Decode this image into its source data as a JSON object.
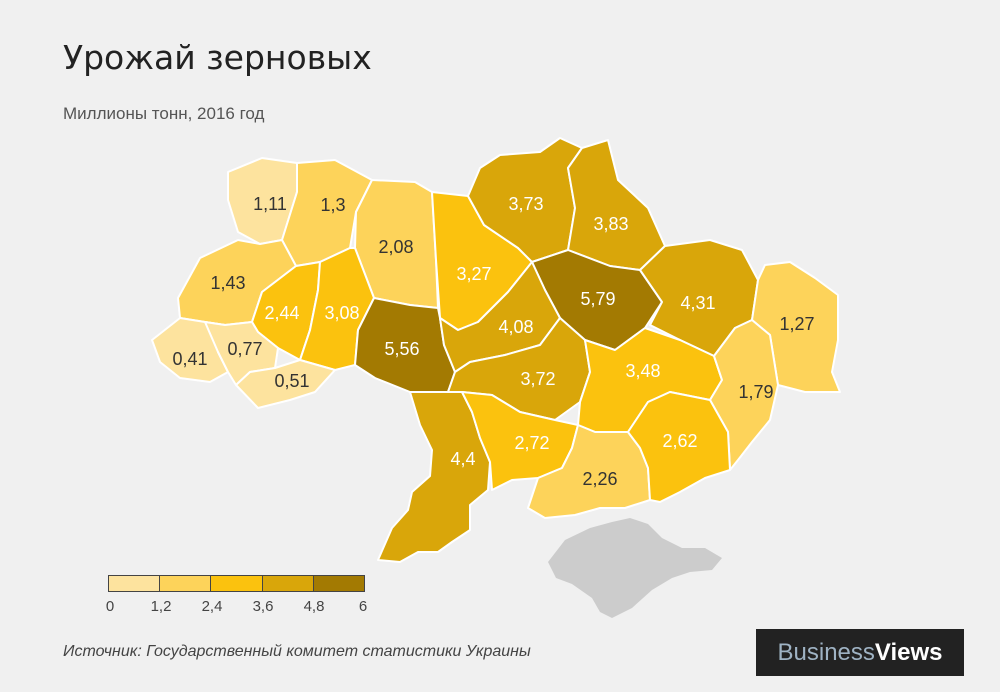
{
  "title": "Урожай зерновых",
  "subtitle": "Миллионы тонн, 2016 год",
  "source": "Источник: Государственный комитет статистики Украины",
  "logo": {
    "part1": "Business",
    "part2": "Views"
  },
  "legend": {
    "ticks": [
      "0",
      "1,2",
      "2,4",
      "3,6",
      "4,8",
      "6"
    ],
    "colors": [
      "#fde39e",
      "#fdd35a",
      "#fbc20e",
      "#d9a60a",
      "#a37a02"
    ]
  },
  "regions": [
    {
      "id": "volyn",
      "value": "1,11",
      "color": "#fde39e"
    },
    {
      "id": "rivne",
      "value": "1,3",
      "color": "#fdd35a"
    },
    {
      "id": "zhytomyr",
      "value": "2,08",
      "color": "#fdd35a"
    },
    {
      "id": "kyiv",
      "value": "3,27",
      "color": "#fbc20e"
    },
    {
      "id": "chernihiv",
      "value": "3,73",
      "color": "#d9a60a"
    },
    {
      "id": "sumy",
      "value": "3,83",
      "color": "#d9a60a"
    },
    {
      "id": "poltava",
      "value": "5,79",
      "color": "#a37a02"
    },
    {
      "id": "kharkiv",
      "value": "4,31",
      "color": "#d9a60a"
    },
    {
      "id": "luhansk",
      "value": "1,27",
      "color": "#fdd35a"
    },
    {
      "id": "lviv",
      "value": "1,43",
      "color": "#fdd35a"
    },
    {
      "id": "ternopil",
      "value": "2,44",
      "color": "#fbc20e"
    },
    {
      "id": "khmelnytskyi",
      "value": "3,08",
      "color": "#fbc20e"
    },
    {
      "id": "vinnytsia",
      "value": "5,56",
      "color": "#a37a02"
    },
    {
      "id": "cherkasy",
      "value": "4,08",
      "color": "#d9a60a"
    },
    {
      "id": "kirovohrad",
      "value": "3,72",
      "color": "#d9a60a"
    },
    {
      "id": "dnipro",
      "value": "3,48",
      "color": "#fbc20e"
    },
    {
      "id": "donetsk",
      "value": "1,79",
      "color": "#fdd35a"
    },
    {
      "id": "zakarpattia",
      "value": "0,41",
      "color": "#fde39e"
    },
    {
      "id": "ivano-frankivsk",
      "value": "0,77",
      "color": "#fde39e"
    },
    {
      "id": "chernivtsi",
      "value": "0,51",
      "color": "#fde39e"
    },
    {
      "id": "odesa",
      "value": "4,4",
      "color": "#d9a60a"
    },
    {
      "id": "mykolaiv",
      "value": "2,72",
      "color": "#fbc20e"
    },
    {
      "id": "kherson",
      "value": "2,26",
      "color": "#fdd35a"
    },
    {
      "id": "zaporizhzhia",
      "value": "2,62",
      "color": "#fbc20e"
    }
  ],
  "crimea_color": "#cccccc"
}
